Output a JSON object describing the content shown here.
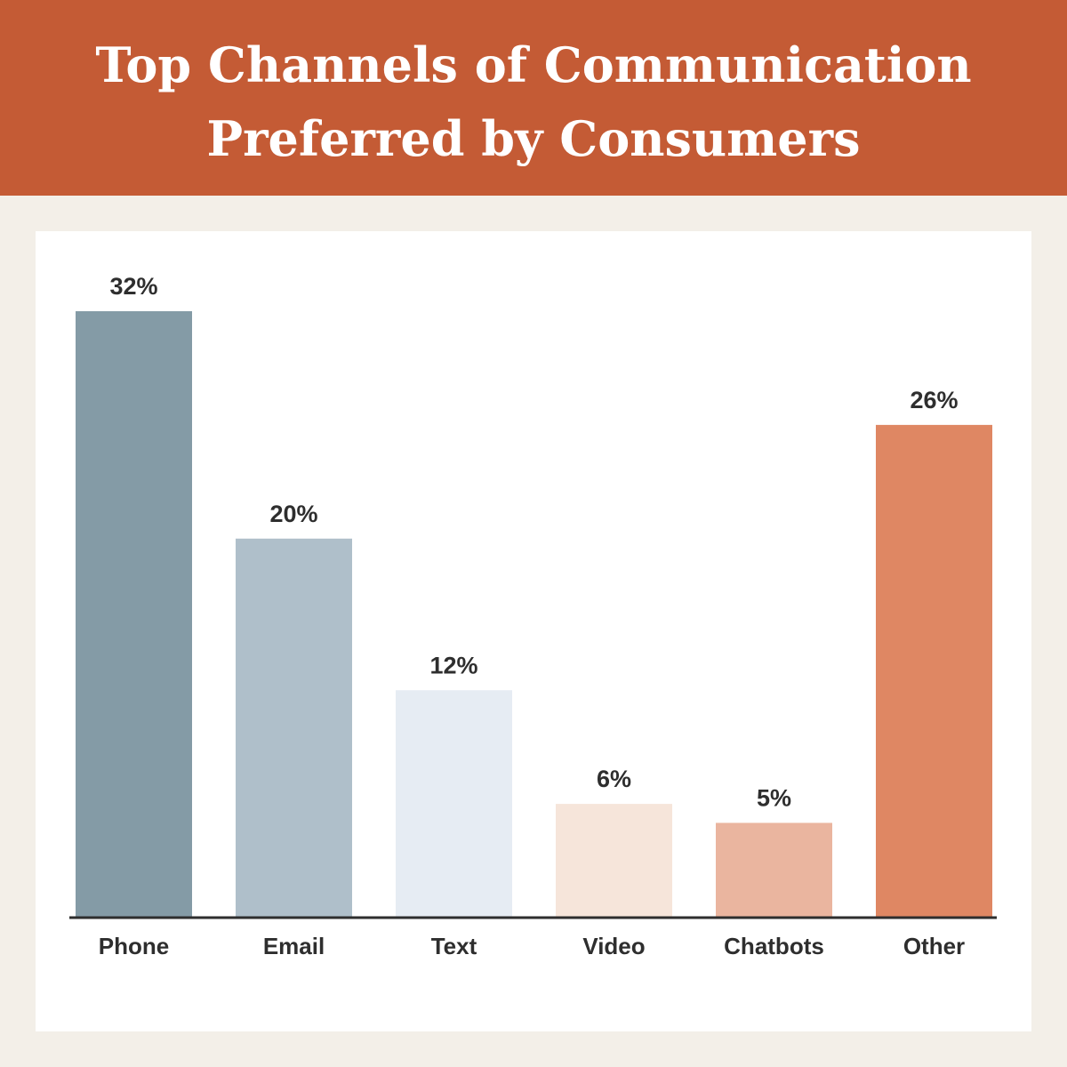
{
  "header": {
    "title_line1": "Top Channels of Communication",
    "title_line2": "Preferred by Consumers"
  },
  "colors": {
    "header_bg": "#c45b35",
    "page_bg": "#f3efe8",
    "card_bg": "#ffffff",
    "axis": "#2e2e2e",
    "text": "#2e2e2e"
  },
  "chart_data": {
    "type": "bar",
    "title": "Top Channels of Communication Preferred by Consumers",
    "categories": [
      "Phone",
      "Email",
      "Text",
      "Video",
      "Chatbots",
      "Other"
    ],
    "values": [
      32,
      20,
      12,
      6,
      5,
      26
    ],
    "value_labels": [
      "32%",
      "20%",
      "12%",
      "6%",
      "5%",
      "26%"
    ],
    "bar_colors": [
      "#849ba6",
      "#afbfca",
      "#e6ecf3",
      "#f6e5da",
      "#eab59f",
      "#df8763"
    ],
    "unit": "%",
    "xlabel": "",
    "ylabel": "",
    "ylim": [
      0,
      32
    ],
    "grid": false,
    "legend": "none"
  }
}
